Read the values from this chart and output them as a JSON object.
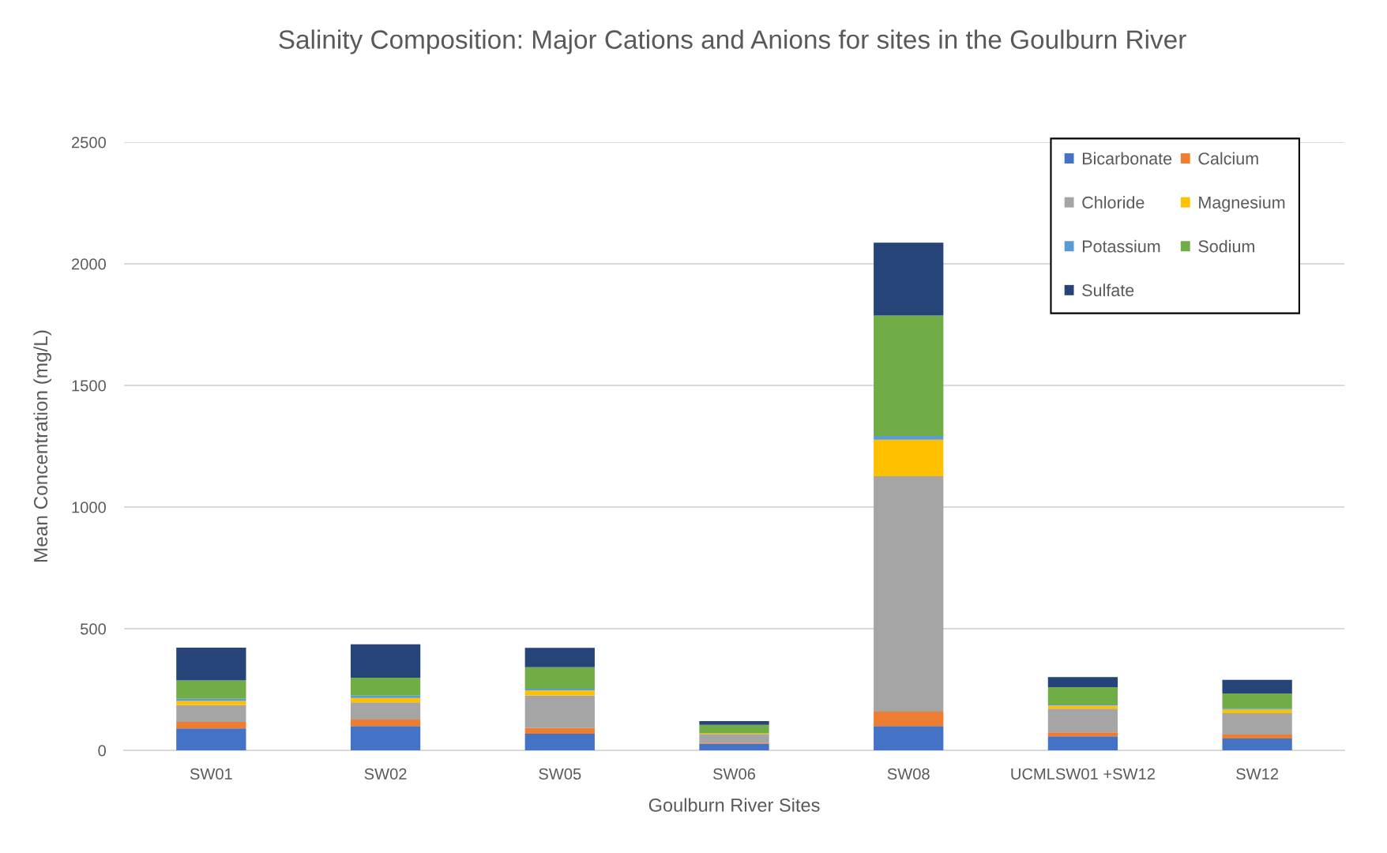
{
  "chart_data": {
    "type": "bar",
    "title": "Salinity Composition: Major Cations and Anions for sites in the Goulburn River",
    "xlabel": "Goulburn River Sites",
    "ylabel": "Mean Concentration (mg/L)",
    "categories": [
      "SW01",
      "SW02",
      "SW05",
      "SW06",
      "SW08",
      "UCMLSW01 +SW12",
      "SW12"
    ],
    "stacked": true,
    "series": [
      {
        "name": "Bicarbonate",
        "color": "#4472c4",
        "values": [
          90,
          100,
          68,
          28,
          100,
          58,
          49
        ]
      },
      {
        "name": "Calcium",
        "color": "#ed7d31",
        "values": [
          27,
          27,
          24,
          4,
          59,
          16,
          16
        ]
      },
      {
        "name": "Chloride",
        "color": "#a5a5a5",
        "values": [
          69,
          70,
          134,
          33,
          968,
          97,
          88
        ]
      },
      {
        "name": "Magnesium",
        "color": "#ffc000",
        "values": [
          17,
          18,
          20,
          4,
          150,
          13,
          14
        ]
      },
      {
        "name": "Potassium",
        "color": "#5b9bd5",
        "values": [
          9,
          10,
          7,
          2,
          15,
          4,
          4
        ]
      },
      {
        "name": "Sodium",
        "color": "#70ad47",
        "values": [
          75,
          74,
          89,
          34,
          495,
          72,
          63
        ]
      },
      {
        "name": "Sulfate",
        "color": "#264478",
        "values": [
          135,
          137,
          79,
          15,
          300,
          41,
          56
        ]
      }
    ],
    "ylim": [
      0,
      2500
    ],
    "yticks": [
      0,
      500,
      1000,
      1500,
      2000,
      2500
    ],
    "grid": "y",
    "legend": "top right"
  }
}
